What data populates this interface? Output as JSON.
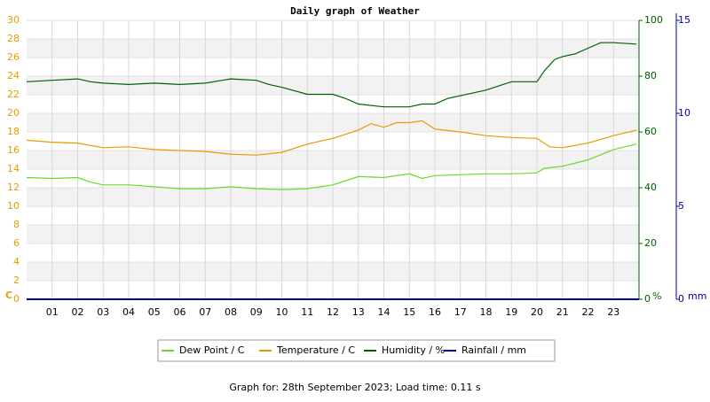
{
  "chart_data": {
    "type": "line",
    "title": "Daily graph of Weather",
    "xlim": [
      0,
      24
    ],
    "xticks": [
      {
        "value": 1,
        "label": "01"
      },
      {
        "value": 2,
        "label": "02"
      },
      {
        "value": 3,
        "label": "03"
      },
      {
        "value": 4,
        "label": "04"
      },
      {
        "value": 5,
        "label": "05"
      },
      {
        "value": 6,
        "label": "06"
      },
      {
        "value": 7,
        "label": "07"
      },
      {
        "value": 8,
        "label": "08"
      },
      {
        "value": 9,
        "label": "09"
      },
      {
        "value": 10,
        "label": "10"
      },
      {
        "value": 11,
        "label": "11"
      },
      {
        "value": 12,
        "label": "12"
      },
      {
        "value": 13,
        "label": "13"
      },
      {
        "value": 14,
        "label": "14"
      },
      {
        "value": 15,
        "label": "15"
      },
      {
        "value": 16,
        "label": "16"
      },
      {
        "value": 17,
        "label": "17"
      },
      {
        "value": 18,
        "label": "18"
      },
      {
        "value": 19,
        "label": "19"
      },
      {
        "value": 20,
        "label": "20"
      },
      {
        "value": 21,
        "label": "21"
      },
      {
        "value": 22,
        "label": "22"
      },
      {
        "value": 23,
        "label": "23"
      }
    ],
    "ylabel": "C",
    "ylim": [
      0,
      30
    ],
    "yticks": [
      0,
      2,
      4,
      6,
      8,
      10,
      12,
      14,
      16,
      18,
      20,
      22,
      24,
      26,
      28,
      30
    ],
    "ycolor": "#e0a000",
    "y2label": "%",
    "y2lim": [
      0,
      100
    ],
    "y2ticks": [
      0,
      20,
      40,
      60,
      80,
      100
    ],
    "y2color": "#006000",
    "y3label": "mm",
    "y3lim": [
      0,
      15
    ],
    "y3ticks": [
      0,
      5,
      10,
      15
    ],
    "y3color": "#0000a0",
    "grid": true,
    "series": [
      {
        "name": "Dew Point / C",
        "color": "#66dd22",
        "x": [
          0,
          1,
          2,
          2.5,
          3,
          4,
          5,
          6,
          7,
          8,
          9,
          10,
          11,
          12,
          13,
          14,
          15,
          15.5,
          16,
          17,
          18,
          19,
          20,
          20.3,
          21,
          22,
          23,
          23.9
        ],
        "values": [
          13.1,
          13.0,
          13.1,
          12.6,
          12.3,
          12.3,
          12.1,
          11.9,
          11.9,
          12.1,
          11.9,
          11.8,
          11.9,
          12.3,
          13.2,
          13.1,
          13.5,
          13.0,
          13.3,
          13.4,
          13.5,
          13.5,
          13.6,
          14.1,
          14.3,
          15.0,
          16.1,
          16.7
        ]
      },
      {
        "name": "Temperature / C",
        "color": "#e89a00",
        "x": [
          0,
          1,
          2,
          3,
          4,
          5,
          6,
          7,
          8,
          9,
          10,
          11,
          12,
          13,
          13.5,
          14,
          14.5,
          15,
          15.5,
          16,
          17,
          18,
          19,
          20,
          20.5,
          21,
          22,
          23,
          23.9
        ],
        "values": [
          17.1,
          16.9,
          16.8,
          16.3,
          16.4,
          16.1,
          16.0,
          15.9,
          15.6,
          15.5,
          15.8,
          16.7,
          17.3,
          18.2,
          18.9,
          18.5,
          19.0,
          19.0,
          19.2,
          18.3,
          18.0,
          17.6,
          17.4,
          17.3,
          16.4,
          16.3,
          16.8,
          17.6,
          18.2
        ]
      },
      {
        "name": "Humidity / %",
        "color": "#006000",
        "axis": "y2",
        "x": [
          0,
          1,
          2,
          2.5,
          3,
          4,
          5,
          6,
          7,
          8,
          9,
          9.5,
          10,
          11,
          12,
          12.5,
          13,
          14,
          15,
          15.5,
          16,
          16.5,
          17,
          18,
          19,
          20,
          20.3,
          20.7,
          21,
          21.5,
          22,
          22.5,
          23,
          23.9
        ],
        "values": [
          78,
          78.5,
          79,
          78,
          77.5,
          77,
          77.5,
          77,
          77.5,
          79,
          78.5,
          77,
          76,
          73.5,
          73.5,
          72,
          70,
          69,
          69,
          70,
          70,
          72,
          73,
          75,
          78,
          78,
          82,
          86,
          87,
          88,
          90,
          92,
          92,
          91.5
        ]
      },
      {
        "name": "Rainfall / mm",
        "color": "#0000a0",
        "axis": "y3",
        "x": [
          0,
          24
        ],
        "values": [
          0,
          0
        ]
      }
    ],
    "footer": "Graph for: 28th September 2023; Load time: 0.11 s"
  }
}
